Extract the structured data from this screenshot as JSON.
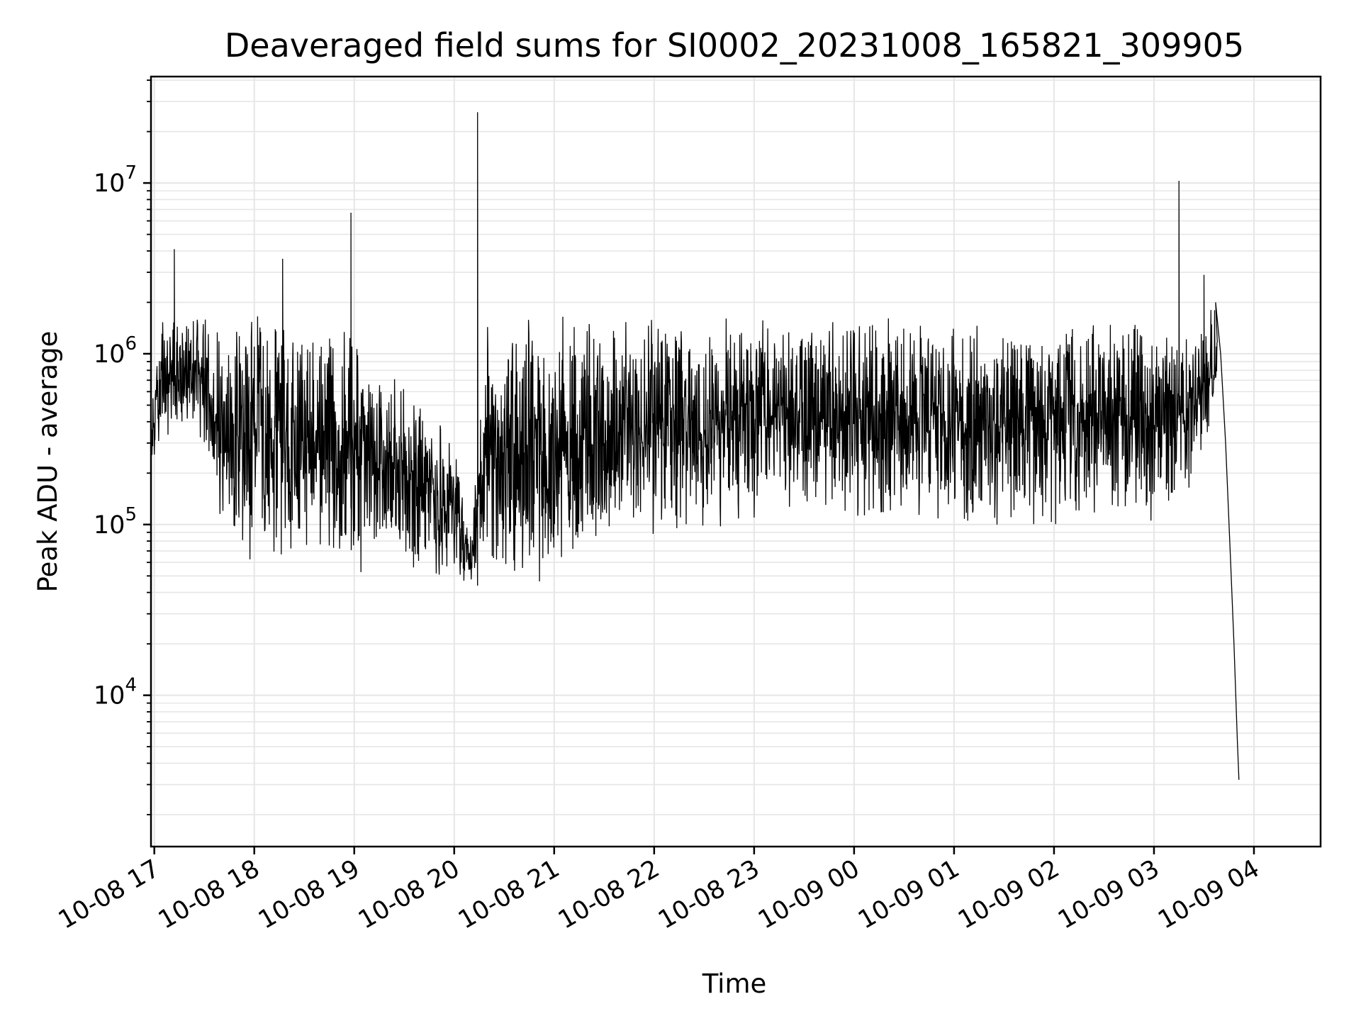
{
  "chart_data": {
    "type": "line",
    "title": "Deaveraged field sums for SI0002_20231008_165821_309905",
    "xlabel": "Time",
    "ylabel": "Peak ADU - average",
    "y_scale": "log",
    "ylim": [
      1300,
      42000000
    ],
    "xlim": [
      "2023-10-08 16:58",
      "2023-10-09 04:40"
    ],
    "grid": true,
    "line_color": "#000000",
    "grid_color": "#e6e6e6",
    "x_ticks": [
      {
        "t": "2023-10-08 17:00",
        "label": "10-08 17"
      },
      {
        "t": "2023-10-08 18:00",
        "label": "10-08 18"
      },
      {
        "t": "2023-10-08 19:00",
        "label": "10-08 19"
      },
      {
        "t": "2023-10-08 20:00",
        "label": "10-08 20"
      },
      {
        "t": "2023-10-08 21:00",
        "label": "10-08 21"
      },
      {
        "t": "2023-10-08 22:00",
        "label": "10-08 22"
      },
      {
        "t": "2023-10-08 23:00",
        "label": "10-08 23"
      },
      {
        "t": "2023-10-09 00:00",
        "label": "10-09 00"
      },
      {
        "t": "2023-10-09 01:00",
        "label": "10-09 01"
      },
      {
        "t": "2023-10-09 02:00",
        "label": "10-09 02"
      },
      {
        "t": "2023-10-09 03:00",
        "label": "10-09 03"
      },
      {
        "t": "2023-10-09 04:00",
        "label": "10-09 04"
      }
    ],
    "y_ticks": [
      {
        "value": 10000,
        "base": "10",
        "exp": "4"
      },
      {
        "value": 100000,
        "base": "10",
        "exp": "5"
      },
      {
        "value": 1000000,
        "base": "10",
        "exp": "6"
      },
      {
        "value": 10000000,
        "base": "10",
        "exp": "7"
      }
    ],
    "envelope": [
      {
        "t": "2023-10-08 16:58",
        "low": 220000,
        "high": 450000
      },
      {
        "t": "2023-10-08 17:05",
        "low": 280000,
        "high": 1900000
      },
      {
        "t": "2023-10-08 17:15",
        "low": 400000,
        "high": 1600000
      },
      {
        "t": "2023-10-08 17:25",
        "low": 350000,
        "high": 2000000
      },
      {
        "t": "2023-10-08 17:35",
        "low": 150000,
        "high": 2000000
      },
      {
        "t": "2023-10-08 17:45",
        "low": 70000,
        "high": 1900000
      },
      {
        "t": "2023-10-08 18:00",
        "low": 60000,
        "high": 1900000
      },
      {
        "t": "2023-10-08 18:20",
        "low": 55000,
        "high": 1800000
      },
      {
        "t": "2023-10-08 18:40",
        "low": 52000,
        "high": 1800000
      },
      {
        "t": "2023-10-08 19:00",
        "low": 50000,
        "high": 1500000
      },
      {
        "t": "2023-10-08 19:20",
        "low": 48000,
        "high": 1100000
      },
      {
        "t": "2023-10-08 19:40",
        "low": 45000,
        "high": 550000
      },
      {
        "t": "2023-10-08 20:00",
        "low": 44000,
        "high": 350000
      },
      {
        "t": "2023-10-08 20:10",
        "low": 42000,
        "high": 90000
      },
      {
        "t": "2023-10-08 20:20",
        "low": 41000,
        "high": 1800000
      },
      {
        "t": "2023-10-08 20:40",
        "low": 40000,
        "high": 1800000
      },
      {
        "t": "2023-10-08 21:00",
        "low": 42000,
        "high": 1900000
      },
      {
        "t": "2023-10-08 21:20",
        "low": 60000,
        "high": 1900000
      },
      {
        "t": "2023-10-08 21:40",
        "low": 70000,
        "high": 1900000
      },
      {
        "t": "2023-10-08 22:00",
        "low": 80000,
        "high": 1900000
      },
      {
        "t": "2023-10-08 22:20",
        "low": 90000,
        "high": 1800000
      },
      {
        "t": "2023-10-08 23:00",
        "low": 100000,
        "high": 1700000
      },
      {
        "t": "2023-10-09 00:00",
        "low": 100000,
        "high": 1700000
      },
      {
        "t": "2023-10-09 01:00",
        "low": 95000,
        "high": 1700000
      },
      {
        "t": "2023-10-09 02:00",
        "low": 95000,
        "high": 1700000
      },
      {
        "t": "2023-10-09 03:00",
        "low": 100000,
        "high": 1700000
      },
      {
        "t": "2023-10-09 03:25",
        "low": 150000,
        "high": 1600000
      },
      {
        "t": "2023-10-09 03:38",
        "low": 500000,
        "high": 2000000
      }
    ],
    "spikes": [
      {
        "t": "2023-10-08 17:12",
        "value": 4100000
      },
      {
        "t": "2023-10-08 18:17",
        "value": 3600000
      },
      {
        "t": "2023-10-08 18:58",
        "value": 6700000
      },
      {
        "t": "2023-10-08 20:14",
        "value": 26000000
      },
      {
        "t": "2023-10-09 03:15",
        "value": 10300000
      },
      {
        "t": "2023-10-09 03:30",
        "value": 2900000
      }
    ],
    "tail": [
      {
        "t": "2023-10-09 03:37",
        "value": 2000000
      },
      {
        "t": "2023-10-09 03:40",
        "value": 1000000
      },
      {
        "t": "2023-10-09 03:43",
        "value": 300000
      },
      {
        "t": "2023-10-09 03:46",
        "value": 60000
      },
      {
        "t": "2023-10-09 03:48",
        "value": 20000
      },
      {
        "t": "2023-10-09 03:50",
        "value": 5500
      },
      {
        "t": "2023-10-09 03:51",
        "value": 3200
      }
    ]
  }
}
